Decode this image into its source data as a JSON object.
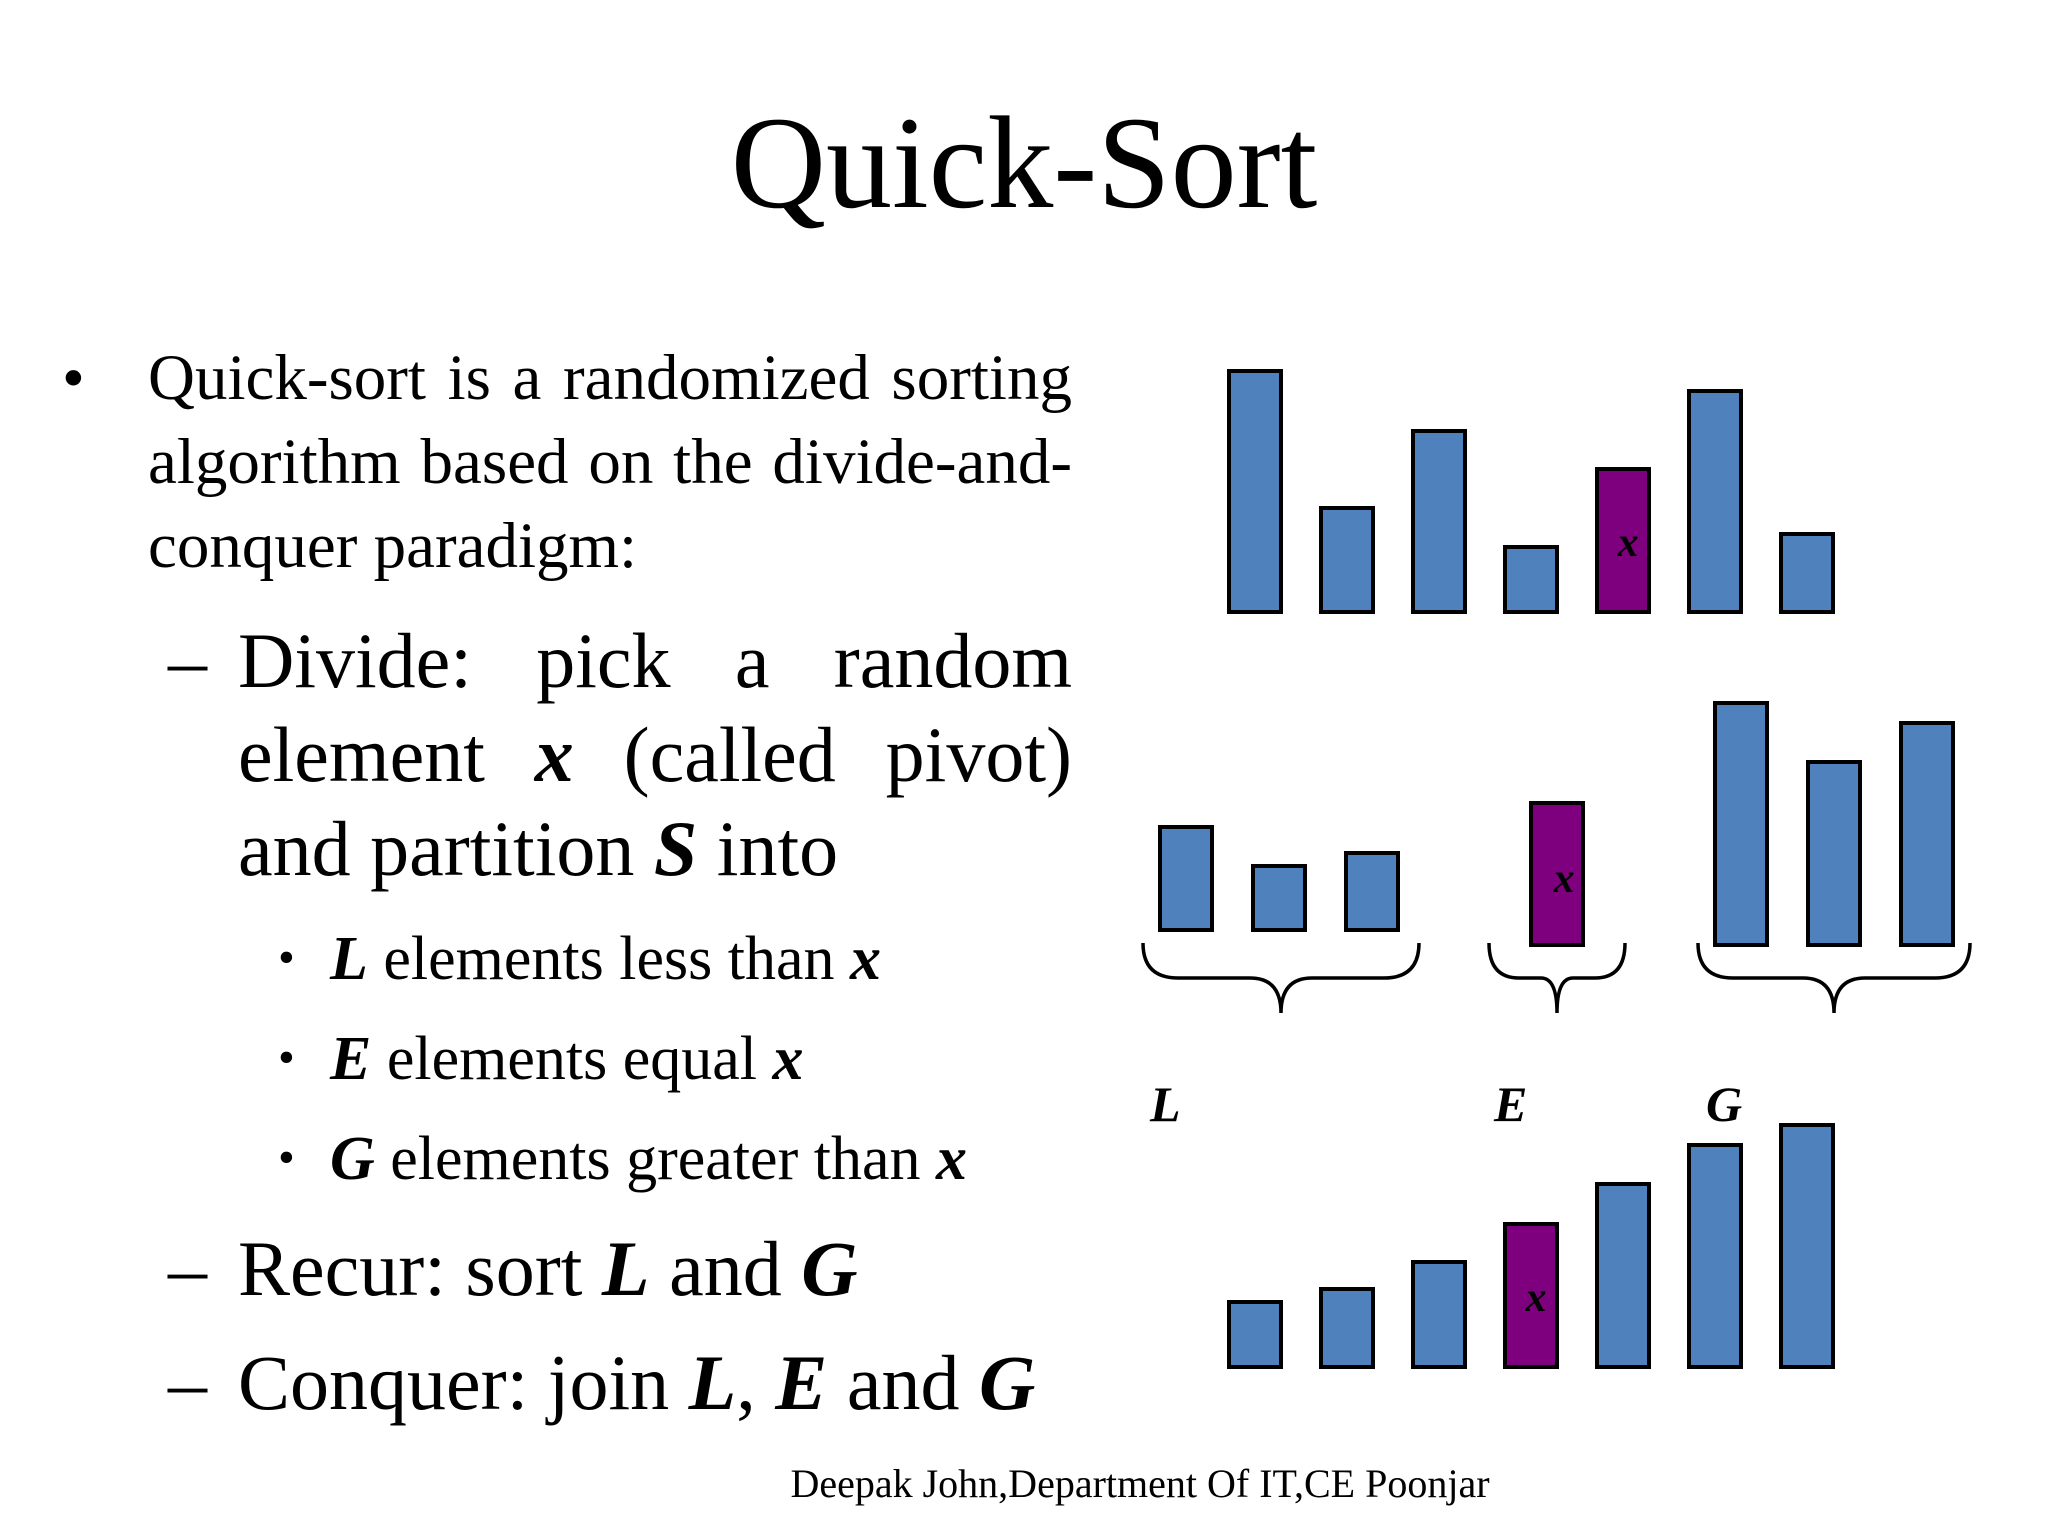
{
  "title": "Quick-Sort",
  "intro": {
    "bullet": "•",
    "text": "Quick-sort is a randomized sorting algorithm based on the divide-and-conquer paradigm:"
  },
  "steps": {
    "dash": "–",
    "divide": {
      "label": "Divide:",
      "text1": " pick a random element ",
      "var_x": "x",
      "text2": " (called pivot) and partition ",
      "var_s": "S",
      "text3": " into"
    },
    "partitions": [
      {
        "var": "L",
        "text": " elements less than ",
        "pivot": "x"
      },
      {
        "var": "E",
        "text": " elements equal ",
        "pivot": "x"
      },
      {
        "var": "G",
        "text": " elements greater than ",
        "pivot": "x"
      }
    ],
    "recur": {
      "label": "Recur:",
      "text1": " sort ",
      "var_l": "L",
      "text2": " and ",
      "var_g": "G"
    },
    "conquer": {
      "label": "Conquer:",
      "text1": " join ",
      "var_l": "L",
      "sep": ", ",
      "var_e": "E",
      "text2": " and ",
      "var_g": "G"
    }
  },
  "diagram": {
    "colors": {
      "element": "#4f81bd",
      "pivot": "#7f007f",
      "stroke": "#000000"
    },
    "pivot_label": "x",
    "group_labels": [
      "L",
      "E",
      "G"
    ]
  },
  "footer": "Deepak John,Department Of IT,CE Poonjar"
}
